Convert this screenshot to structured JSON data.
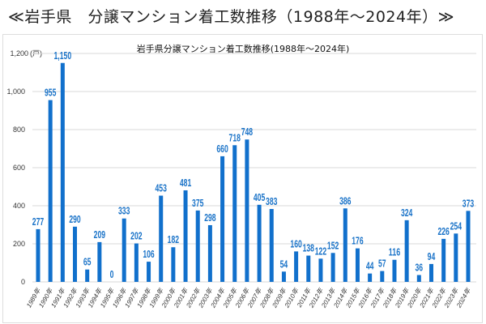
{
  "page_title": "≪岩手県　分譲マンション着工数推移（1988年～2024年）≫",
  "chart_data": {
    "type": "bar",
    "title": "岩手県分譲マンション着工数推移(1988年～2024年)",
    "ylabel": "(戸)",
    "ylim": [
      0,
      1200
    ],
    "yticks": [
      "0",
      "200",
      "400",
      "600",
      "800",
      "1,000",
      "1,200"
    ],
    "grid": true,
    "bar_color": "#1170cc",
    "label_color": "#1a73c8",
    "categories": [
      "1989年",
      "1990年",
      "1991年",
      "1992年",
      "1993年",
      "1994年",
      "1995年",
      "1996年",
      "1997年",
      "1998年",
      "1999年",
      "2000年",
      "2001年",
      "2002年",
      "2003年",
      "2004年",
      "2005年",
      "2006年",
      "2007年",
      "2008年",
      "2009年",
      "2010年",
      "2011年",
      "2012年",
      "2013年",
      "2014年",
      "2015年",
      "2016年",
      "2017年",
      "2018年",
      "2019年",
      "2020年",
      "2021年",
      "2022年",
      "2023年",
      "2024年"
    ],
    "values": [
      277,
      955,
      1150,
      290,
      65,
      209,
      0,
      333,
      202,
      106,
      453,
      182,
      481,
      375,
      298,
      660,
      718,
      748,
      405,
      383,
      54,
      160,
      138,
      122,
      152,
      386,
      176,
      44,
      57,
      116,
      324,
      36,
      94,
      226,
      254,
      373
    ],
    "data_labels": [
      "277",
      "955",
      "1,150",
      "290",
      "65",
      "209",
      "0",
      "333",
      "202",
      "106",
      "453",
      "182",
      "481",
      "375",
      "298",
      "660",
      "718",
      "748",
      "405",
      "383",
      "54",
      "160",
      "138",
      "122",
      "152",
      "386",
      "176",
      "44",
      "57",
      "116",
      "324",
      "36",
      "94",
      "226",
      "254",
      "373"
    ]
  }
}
